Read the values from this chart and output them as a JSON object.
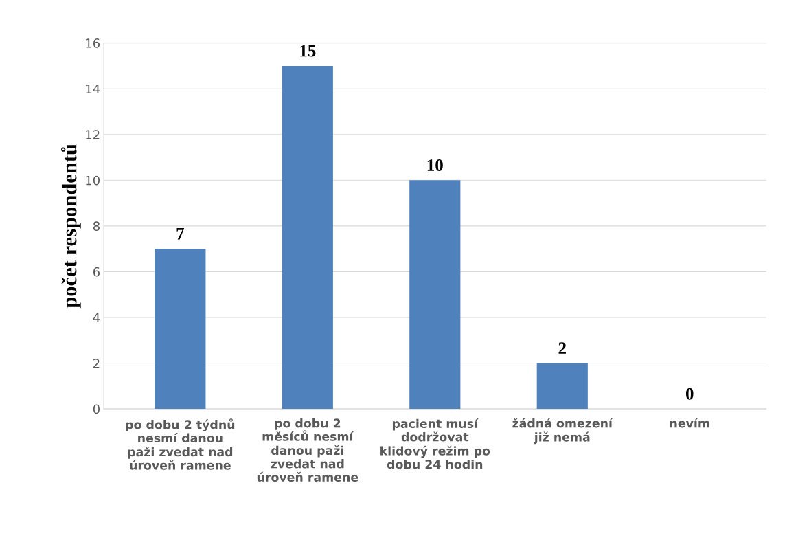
{
  "chart_data": {
    "type": "bar",
    "ylabel": "počet respondentů",
    "categories": [
      "po dobu 2 týdnů\nnesmí danou\npaži zvedat nad\núroveň ramene",
      "po dobu 2\nměsíců nesmí\ndanou paži\nzvedat nad\núroveň ramene",
      "pacient musí\ndodržovat\nklidový režim po\ndobu 24 hodin",
      "žádná omezení\njiž nemá",
      "nevím"
    ],
    "values": [
      7,
      15,
      10,
      2,
      0
    ],
    "color": "#4f81bd",
    "ylim": [
      0,
      16
    ],
    "yticks": [
      0,
      2,
      4,
      6,
      8,
      10,
      12,
      14,
      16
    ],
    "grid": "y",
    "data_labels": true
  }
}
